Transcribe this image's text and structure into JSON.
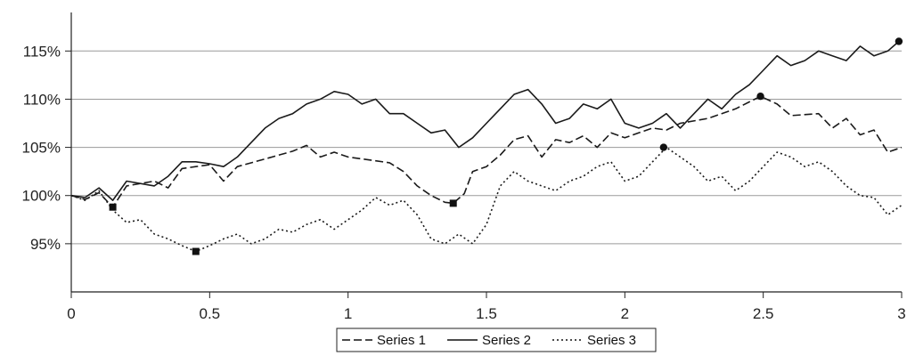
{
  "chart_data": {
    "type": "line",
    "title": "",
    "xlabel": "",
    "ylabel": "",
    "xlim": [
      0,
      3
    ],
    "ylim": [
      90,
      119
    ],
    "x_ticks": [
      0,
      0.5,
      1,
      1.5,
      2,
      2.5,
      3
    ],
    "x_tick_labels": [
      "0",
      "0.5",
      "1",
      "1.5",
      "2",
      "2.5",
      "3"
    ],
    "y_ticks": [
      95,
      100,
      105,
      110,
      115
    ],
    "y_tick_labels": [
      "95%",
      "100%",
      "105%",
      "110%",
      "115%"
    ],
    "grid": "horizontal",
    "legend": "bottom-center",
    "series": [
      {
        "name": "Series 1",
        "style": "dashed",
        "x": [
          0,
          0.05,
          0.1,
          0.15,
          0.2,
          0.3,
          0.35,
          0.4,
          0.45,
          0.5,
          0.55,
          0.6,
          0.7,
          0.8,
          0.85,
          0.9,
          0.95,
          1.0,
          1.1,
          1.15,
          1.2,
          1.25,
          1.3,
          1.35,
          1.38,
          1.42,
          1.45,
          1.5,
          1.55,
          1.6,
          1.65,
          1.7,
          1.75,
          1.8,
          1.85,
          1.9,
          1.95,
          2.0,
          2.05,
          2.1,
          2.15,
          2.2,
          2.3,
          2.4,
          2.49,
          2.55,
          2.6,
          2.7,
          2.75,
          2.8,
          2.85,
          2.9,
          2.95,
          3.0
        ],
        "values": [
          100.0,
          99.6,
          100.3,
          98.8,
          101.0,
          101.5,
          100.8,
          102.8,
          103.0,
          103.2,
          101.5,
          103.0,
          103.8,
          104.6,
          105.2,
          104.0,
          104.5,
          104.0,
          103.6,
          103.4,
          102.5,
          101.0,
          100.0,
          99.3,
          99.2,
          100.2,
          102.5,
          103.0,
          104.2,
          105.8,
          106.2,
          104.0,
          105.8,
          105.5,
          106.2,
          105.0,
          106.5,
          106.0,
          106.5,
          107.0,
          106.8,
          107.5,
          108.0,
          109.0,
          110.3,
          109.5,
          108.3,
          108.5,
          107.0,
          108.0,
          106.3,
          106.8,
          104.5,
          105.0
        ],
        "markers": [
          [
            0.15,
            98.8
          ],
          [
            1.38,
            99.2
          ],
          [
            2.49,
            110.3
          ]
        ]
      },
      {
        "name": "Series 2",
        "style": "solid",
        "x": [
          0,
          0.05,
          0.1,
          0.15,
          0.2,
          0.3,
          0.35,
          0.4,
          0.45,
          0.5,
          0.55,
          0.6,
          0.65,
          0.7,
          0.75,
          0.8,
          0.85,
          0.9,
          0.95,
          1.0,
          1.05,
          1.1,
          1.15,
          1.2,
          1.25,
          1.3,
          1.35,
          1.4,
          1.45,
          1.5,
          1.55,
          1.6,
          1.65,
          1.7,
          1.75,
          1.8,
          1.85,
          1.9,
          1.95,
          2.0,
          2.05,
          2.1,
          2.15,
          2.2,
          2.3,
          2.35,
          2.4,
          2.45,
          2.5,
          2.55,
          2.6,
          2.65,
          2.7,
          2.75,
          2.8,
          2.85,
          2.9,
          2.95,
          2.99
        ],
        "values": [
          100.0,
          99.8,
          100.8,
          99.5,
          101.5,
          101.0,
          102.0,
          103.5,
          103.5,
          103.3,
          103.0,
          104.0,
          105.5,
          107.0,
          108.0,
          108.5,
          109.5,
          110.0,
          110.8,
          110.5,
          109.5,
          110.0,
          108.5,
          108.5,
          107.5,
          106.5,
          106.8,
          105.0,
          106.0,
          107.5,
          109.0,
          110.5,
          111.0,
          109.5,
          107.5,
          108.0,
          109.5,
          109.0,
          110.0,
          107.5,
          107.0,
          107.5,
          108.5,
          107.0,
          110.0,
          109.0,
          110.5,
          111.5,
          113.0,
          114.5,
          113.5,
          114.0,
          115.0,
          114.5,
          114.0,
          115.5,
          114.5,
          115.0,
          116.0
        ],
        "markers": [
          [
            2.99,
            116.0
          ]
        ]
      },
      {
        "name": "Series 3",
        "style": "dotted",
        "x": [
          0,
          0.05,
          0.1,
          0.15,
          0.2,
          0.25,
          0.3,
          0.35,
          0.4,
          0.45,
          0.5,
          0.55,
          0.6,
          0.65,
          0.7,
          0.75,
          0.8,
          0.85,
          0.9,
          0.95,
          1.0,
          1.05,
          1.1,
          1.15,
          1.2,
          1.25,
          1.3,
          1.35,
          1.4,
          1.45,
          1.5,
          1.55,
          1.6,
          1.65,
          1.7,
          1.75,
          1.8,
          1.85,
          1.9,
          1.95,
          2.0,
          2.05,
          2.1,
          2.15,
          2.2,
          2.25,
          2.3,
          2.35,
          2.4,
          2.45,
          2.5,
          2.55,
          2.6,
          2.65,
          2.7,
          2.75,
          2.8,
          2.85,
          2.9,
          2.95,
          3.0
        ],
        "values": [
          100.0,
          99.5,
          100.5,
          98.5,
          97.2,
          97.5,
          96.0,
          95.5,
          94.8,
          94.2,
          94.8,
          95.5,
          96.0,
          95.0,
          95.5,
          96.5,
          96.2,
          97.0,
          97.5,
          96.5,
          97.5,
          98.5,
          99.8,
          99.0,
          99.5,
          98.0,
          95.5,
          95.0,
          96.0,
          95.0,
          97.0,
          101.0,
          102.5,
          101.5,
          101.0,
          100.5,
          101.5,
          102.0,
          103.0,
          103.5,
          101.5,
          102.0,
          103.5,
          105.0,
          104.0,
          103.0,
          101.5,
          102.0,
          100.5,
          101.5,
          103.0,
          104.5,
          104.0,
          103.0,
          103.5,
          102.5,
          101.0,
          100.0,
          99.8,
          98.0,
          99.0
        ],
        "markers": [
          [
            2.14,
            105.0
          ]
        ],
        "square_markers": [
          [
            0.45,
            94.2
          ]
        ]
      }
    ]
  }
}
